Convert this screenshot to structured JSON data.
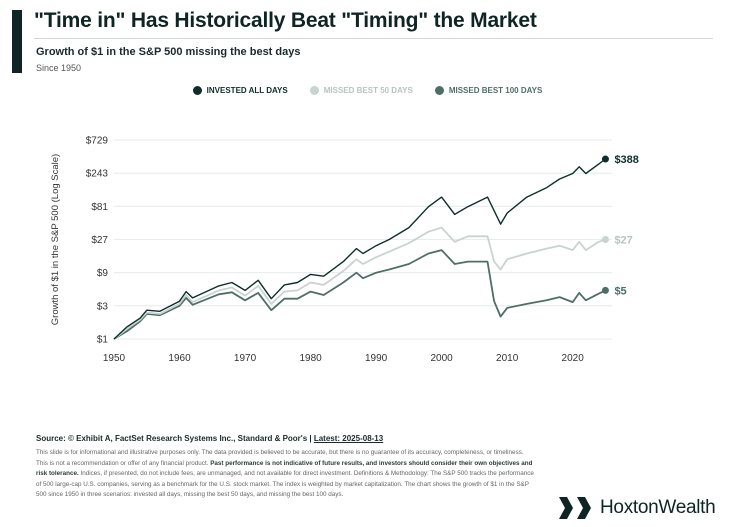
{
  "header": {
    "title": "\"Time in\" Has Historically Beat \"Timing\" the Market",
    "subtitle": "Growth of $1 in the S&P 500 missing the best days",
    "since": "Since 1950"
  },
  "colors": {
    "invested": "#0f2e2b",
    "missed50": "#c9d3cf",
    "missed100": "#4f6e68",
    "accent": "#0f2424"
  },
  "chart_data": {
    "type": "line",
    "ylabel": "Growth of $1 in the S&P 500 (Log Scale)",
    "xlabel": "",
    "y_scale": "log",
    "ylim": [
      1,
      729
    ],
    "xlim": [
      1950,
      2026
    ],
    "y_ticks": [
      1,
      3,
      9,
      27,
      81,
      243,
      729
    ],
    "y_tick_labels": [
      "$1",
      "$3",
      "$9",
      "$27",
      "$81",
      "$243",
      "$729"
    ],
    "x_ticks": [
      1950,
      1960,
      1970,
      1980,
      1990,
      2000,
      2010,
      2020
    ],
    "x_tick_labels": [
      "1950",
      "1960",
      "1970",
      "1980",
      "1990",
      "2000",
      "2010",
      "2020"
    ],
    "legend_position": "top-center",
    "grid": "horizontal",
    "series": [
      {
        "name": "INVESTED ALL DAYS",
        "end_label": "$388",
        "points": [
          [
            1950,
            1
          ],
          [
            1952,
            1.5
          ],
          [
            1954,
            2.0
          ],
          [
            1955,
            2.6
          ],
          [
            1957,
            2.5
          ],
          [
            1960,
            3.5
          ],
          [
            1961,
            4.8
          ],
          [
            1962,
            3.9
          ],
          [
            1966,
            5.8
          ],
          [
            1968,
            6.5
          ],
          [
            1970,
            5.0
          ],
          [
            1972,
            7.0
          ],
          [
            1974,
            3.8
          ],
          [
            1976,
            6.0
          ],
          [
            1978,
            6.5
          ],
          [
            1980,
            8.5
          ],
          [
            1982,
            8.0
          ],
          [
            1985,
            13
          ],
          [
            1987,
            20
          ],
          [
            1988,
            17
          ],
          [
            1990,
            22
          ],
          [
            1992,
            27
          ],
          [
            1995,
            40
          ],
          [
            1998,
            80
          ],
          [
            2000,
            110
          ],
          [
            2002,
            62
          ],
          [
            2004,
            80
          ],
          [
            2007,
            110
          ],
          [
            2009,
            45
          ],
          [
            2010,
            65
          ],
          [
            2013,
            110
          ],
          [
            2016,
            150
          ],
          [
            2018,
            200
          ],
          [
            2020,
            240
          ],
          [
            2021,
            300
          ],
          [
            2022,
            240
          ],
          [
            2024,
            330
          ],
          [
            2025,
            388
          ]
        ]
      },
      {
        "name": "MISSED BEST 50 DAYS",
        "end_label": "$27",
        "points": [
          [
            1950,
            1
          ],
          [
            1952,
            1.4
          ],
          [
            1954,
            1.9
          ],
          [
            1955,
            2.4
          ],
          [
            1957,
            2.3
          ],
          [
            1960,
            3.2
          ],
          [
            1961,
            4.3
          ],
          [
            1962,
            3.4
          ],
          [
            1966,
            5.0
          ],
          [
            1968,
            5.5
          ],
          [
            1970,
            4.2
          ],
          [
            1972,
            5.8
          ],
          [
            1974,
            3.2
          ],
          [
            1976,
            4.8
          ],
          [
            1978,
            5.0
          ],
          [
            1980,
            6.5
          ],
          [
            1982,
            6.0
          ],
          [
            1985,
            9.5
          ],
          [
            1987,
            14
          ],
          [
            1988,
            12
          ],
          [
            1990,
            15
          ],
          [
            1992,
            18
          ],
          [
            1995,
            24
          ],
          [
            1998,
            35
          ],
          [
            2000,
            40
          ],
          [
            2002,
            25
          ],
          [
            2004,
            30
          ],
          [
            2007,
            30
          ],
          [
            2008,
            13
          ],
          [
            2009,
            10
          ],
          [
            2010,
            14
          ],
          [
            2013,
            17
          ],
          [
            2016,
            20
          ],
          [
            2018,
            22
          ],
          [
            2020,
            19
          ],
          [
            2021,
            25
          ],
          [
            2022,
            19
          ],
          [
            2024,
            25
          ],
          [
            2025,
            27
          ]
        ]
      },
      {
        "name": "MISSED BEST 100 DAYS",
        "end_label": "$5",
        "points": [
          [
            1950,
            1
          ],
          [
            1952,
            1.3
          ],
          [
            1954,
            1.8
          ],
          [
            1955,
            2.3
          ],
          [
            1957,
            2.2
          ],
          [
            1960,
            3.0
          ],
          [
            1961,
            3.9
          ],
          [
            1962,
            3.1
          ],
          [
            1966,
            4.4
          ],
          [
            1968,
            4.7
          ],
          [
            1970,
            3.6
          ],
          [
            1972,
            4.6
          ],
          [
            1974,
            2.6
          ],
          [
            1976,
            3.8
          ],
          [
            1978,
            3.8
          ],
          [
            1980,
            4.8
          ],
          [
            1982,
            4.3
          ],
          [
            1985,
            6.5
          ],
          [
            1987,
            9.0
          ],
          [
            1988,
            7.5
          ],
          [
            1990,
            9.0
          ],
          [
            1992,
            10
          ],
          [
            1995,
            12
          ],
          [
            1998,
            17
          ],
          [
            2000,
            19
          ],
          [
            2002,
            12
          ],
          [
            2004,
            13
          ],
          [
            2007,
            13
          ],
          [
            2008,
            3.5
          ],
          [
            2009,
            2.1
          ],
          [
            2010,
            2.8
          ],
          [
            2013,
            3.2
          ],
          [
            2016,
            3.6
          ],
          [
            2018,
            4.0
          ],
          [
            2020,
            3.4
          ],
          [
            2021,
            4.6
          ],
          [
            2022,
            3.6
          ],
          [
            2024,
            4.5
          ],
          [
            2025,
            5
          ]
        ]
      }
    ]
  },
  "footer": {
    "source_prefix": "Source: © Exhibit A, FactSet Research Systems Inc., Standard & Poor's | ",
    "source_latest": "Latest: 2025-08-13",
    "disclaimer_1": "This slide is for informational and illustrative purposes only. The data provided is believed to be accurate, but there is no guarantee of its accuracy, completeness, or timeliness. This is not a recommendation or offer of any financial product. ",
    "disclaimer_bold": "Past performance is not indicative of future results, and investors should consider their own objectives and risk tolerance.",
    "disclaimer_2": " Indices, if presented, do not include fees, are unmanaged, and not available for direct investment. Definitions & Methodology: The S&P 500 tracks the performance of 500 large-cap U.S. companies, serving as a benchmark for the U.S. stock market. The index is weighted by market capitalization. The chart shows the growth of $1 in the S&P 500 since 1950 in three scenarios: invested all days, missing the best 50 days, and missing the best 100 days."
  },
  "brand": {
    "name": "HoxtonWealth",
    "logo_icon": "hoxton-logo-icon"
  }
}
